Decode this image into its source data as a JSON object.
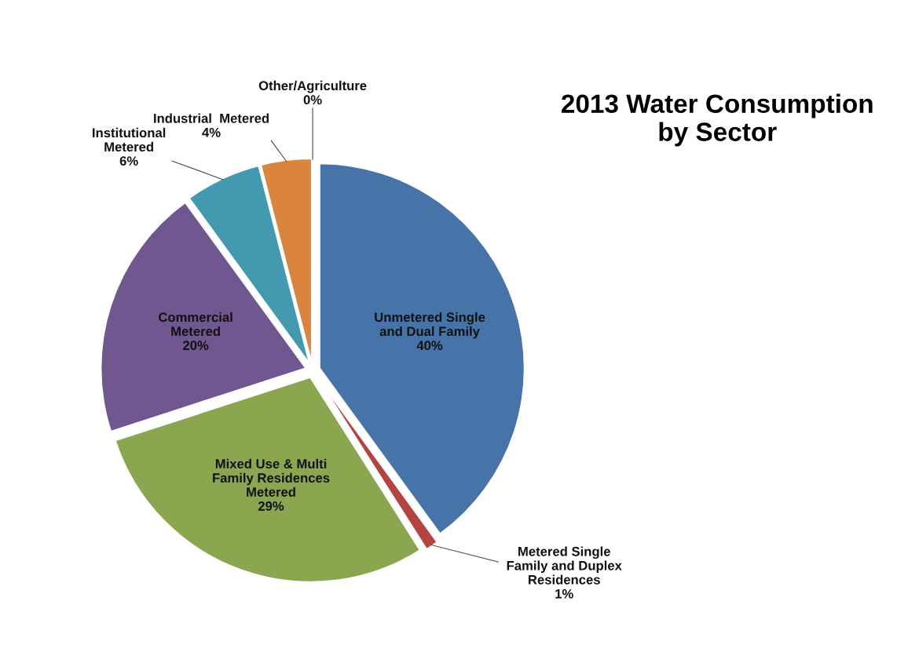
{
  "chart_data": {
    "type": "pie",
    "title": "2013 Water Consumption\nby Sector",
    "categories": [
      "Unmetered Single\nand Dual Family",
      "Metered Single\nFamily and Duplex\nResidences",
      "Mixed Use & Multi\nFamily Residences\nMetered",
      "Commercial\nMetered",
      "Institutional\nMetered",
      "Industrial  Metered",
      "Other/Agriculture"
    ],
    "values": [
      40,
      1,
      29,
      20,
      6,
      4,
      0
    ],
    "value_labels": [
      "40%",
      "1%",
      "29%",
      "20%",
      "6%",
      "4%",
      "0%"
    ],
    "colors": [
      "#4674a8",
      "#b5433f",
      "#8aa64e",
      "#70578f",
      "#4399b0",
      "#db843d",
      "#d99694"
    ],
    "legend": false
  }
}
